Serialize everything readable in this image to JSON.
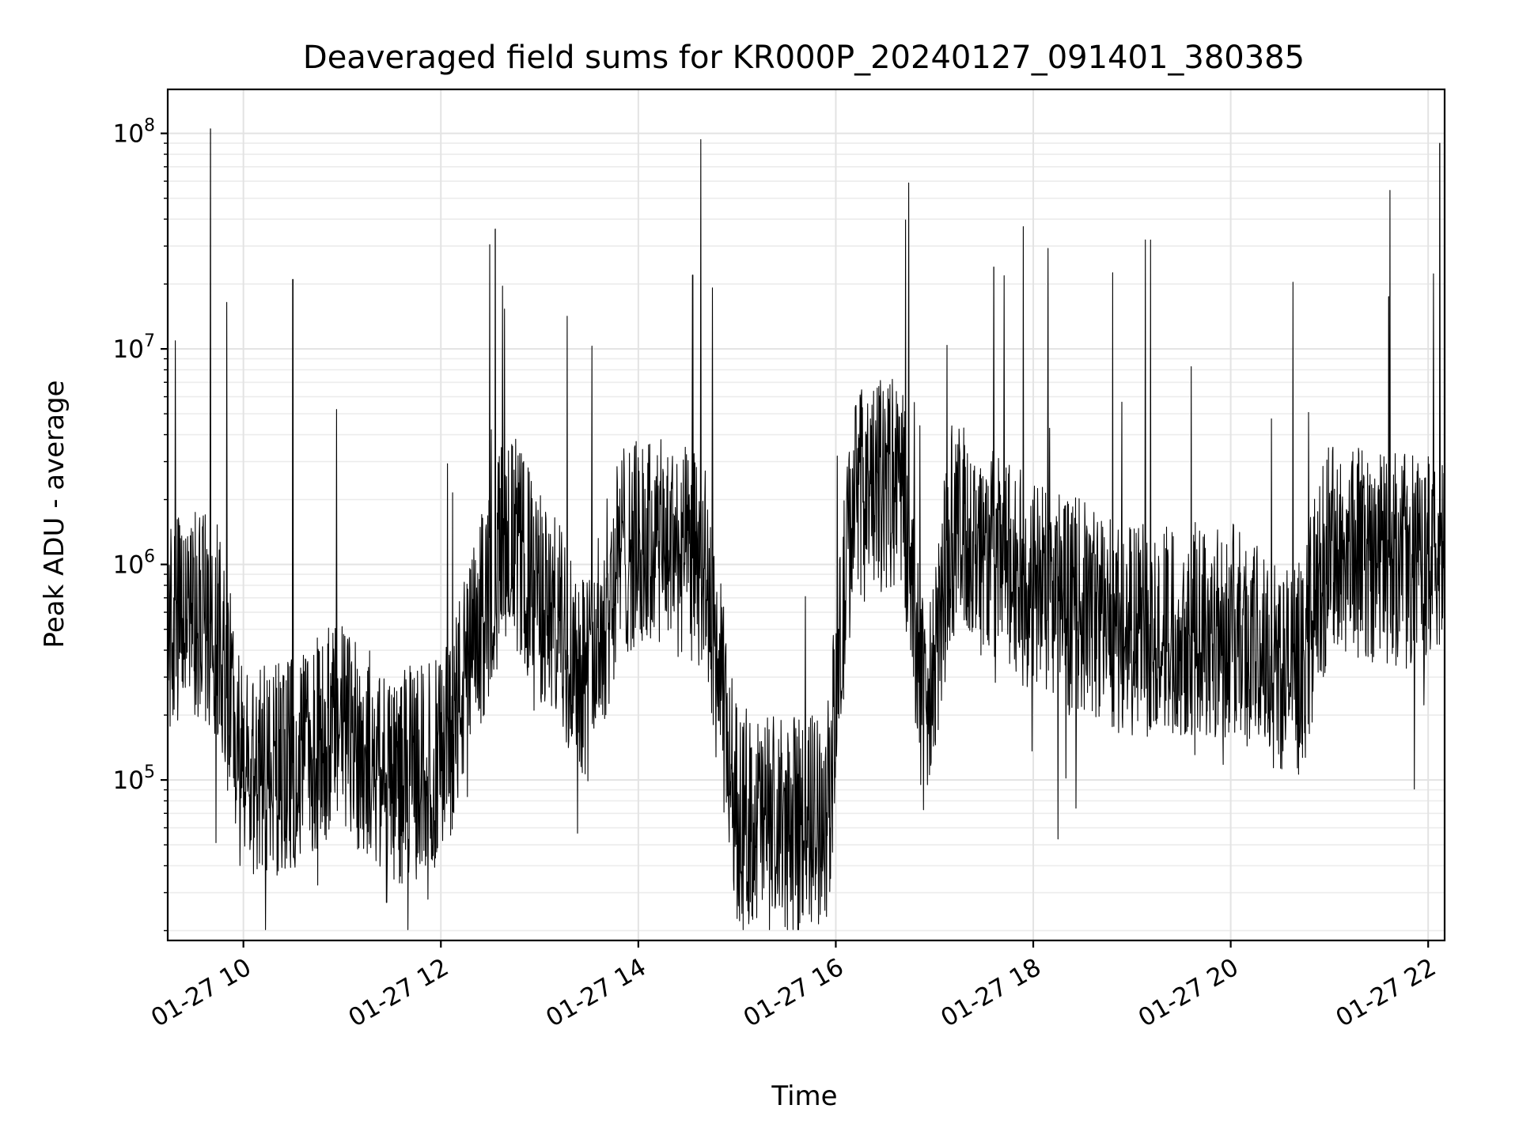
{
  "chart_data": {
    "type": "line",
    "title": "Deaveraged field sums for KR000P_20240127_091401_380385",
    "xlabel": "Time",
    "ylabel": "Peak ADU - average",
    "yscale": "log",
    "ylim": [
      18000,
      160000000
    ],
    "xlim": [
      "2024-01-27 09:14",
      "2024-01-27 22:10"
    ],
    "grid": "on (major and minor on y)",
    "x_ticks": [
      {
        "t": "2024-01-27 10:00",
        "label": "01-27 10"
      },
      {
        "t": "2024-01-27 12:00",
        "label": "01-27 12"
      },
      {
        "t": "2024-01-27 14:00",
        "label": "01-27 14"
      },
      {
        "t": "2024-01-27 16:00",
        "label": "01-27 16"
      },
      {
        "t": "2024-01-27 18:00",
        "label": "01-27 18"
      },
      {
        "t": "2024-01-27 20:00",
        "label": "01-27 20"
      },
      {
        "t": "2024-01-27 22:00",
        "label": "01-27 22"
      }
    ],
    "y_ticks": [
      {
        "value": 100000,
        "base": "10",
        "exp": "5"
      },
      {
        "value": 1000000,
        "base": "10",
        "exp": "6"
      },
      {
        "value": 10000000,
        "base": "10",
        "exp": "7"
      },
      {
        "value": 100000000,
        "base": "10",
        "exp": "8"
      }
    ],
    "series": [
      {
        "color": "#000000",
        "note": "dense noisy time series; approximate envelope (median values) per segment",
        "points": [
          {
            "t": "2024-01-27 09:15",
            "v": 500000
          },
          {
            "t": "2024-01-27 09:30",
            "v": 600000
          },
          {
            "t": "2024-01-27 09:45",
            "v": 500000
          },
          {
            "t": "2024-01-27 10:00",
            "v": 100000
          },
          {
            "t": "2024-01-27 10:30",
            "v": 120000
          },
          {
            "t": "2024-01-27 11:00",
            "v": 180000
          },
          {
            "t": "2024-01-27 11:30",
            "v": 100000
          },
          {
            "t": "2024-01-27 12:00",
            "v": 120000
          },
          {
            "t": "2024-01-27 12:20",
            "v": 400000
          },
          {
            "t": "2024-01-27 12:40",
            "v": 1500000
          },
          {
            "t": "2024-01-27 13:00",
            "v": 700000
          },
          {
            "t": "2024-01-27 13:30",
            "v": 300000
          },
          {
            "t": "2024-01-27 13:50",
            "v": 1200000
          },
          {
            "t": "2024-01-27 14:20",
            "v": 1200000
          },
          {
            "t": "2024-01-27 14:40",
            "v": 1000000
          },
          {
            "t": "2024-01-27 15:00",
            "v": 70000
          },
          {
            "t": "2024-01-27 15:30",
            "v": 60000
          },
          {
            "t": "2024-01-27 15:55",
            "v": 70000
          },
          {
            "t": "2024-01-27 16:10",
            "v": 2000000
          },
          {
            "t": "2024-01-27 16:40",
            "v": 2500000
          },
          {
            "t": "2024-01-27 16:55",
            "v": 150000
          },
          {
            "t": "2024-01-27 17:10",
            "v": 1500000
          },
          {
            "t": "2024-01-27 18:00",
            "v": 800000
          },
          {
            "t": "2024-01-27 19:00",
            "v": 500000
          },
          {
            "t": "2024-01-27 20:00",
            "v": 500000
          },
          {
            "t": "2024-01-27 20:40",
            "v": 300000
          },
          {
            "t": "2024-01-27 21:00",
            "v": 1200000
          },
          {
            "t": "2024-01-27 22:00",
            "v": 1000000
          }
        ],
        "spikes": [
          {
            "t": "2024-01-27 09:40",
            "v": 105000000
          },
          {
            "t": "2024-01-27 12:33",
            "v": 36000000
          },
          {
            "t": "2024-01-27 10:30",
            "v": 21000000
          },
          {
            "t": "2024-01-27 14:33",
            "v": 22000000
          },
          {
            "t": "2024-01-27 17:36",
            "v": 24000000
          },
          {
            "t": "2024-01-27 21:36",
            "v": 17500000
          },
          {
            "t": "2024-01-27 22:07",
            "v": 90000000
          },
          {
            "t": "2024-01-27 11:27",
            "v": 27000
          }
        ]
      }
    ]
  }
}
